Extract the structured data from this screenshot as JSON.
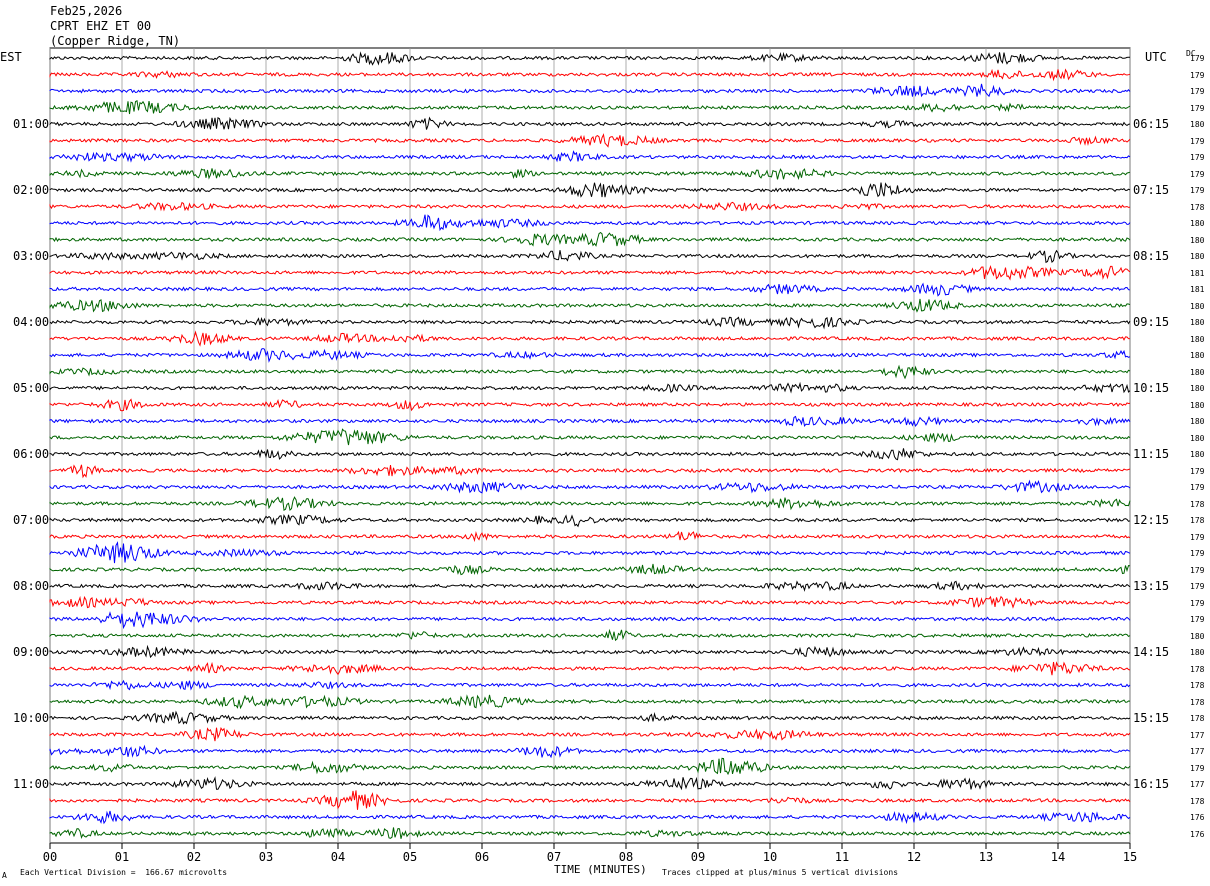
{
  "header": {
    "date": "Feb25,2026",
    "station": "CPRT EHZ ET 00",
    "location": "(Copper Ridge, TN)"
  },
  "left_timezone": "EST",
  "right_timezone": "UTC",
  "dc_label": "DC",
  "footer": {
    "scale": "Each Vertical Division =  166.67 microvolts",
    "xaxis_title": "TIME (MINUTES)",
    "clip_note": "Traces clipped at plus/minus 5 vertical divisions",
    "corner_mark": "A"
  },
  "chart_data": {
    "type": "line",
    "description_kind": "helicorder",
    "x_range": [
      0,
      15
    ],
    "x_ticks": [
      "00",
      "01",
      "02",
      "03",
      "04",
      "05",
      "06",
      "07",
      "08",
      "09",
      "10",
      "11",
      "12",
      "13",
      "14",
      "15"
    ],
    "grid": "vertical lines at each minute",
    "trace_colors": [
      "#000000",
      "#ff0000",
      "#0000ff",
      "#006400"
    ],
    "est_hour_labels": [
      "01:00",
      "02:00",
      "03:00",
      "04:00",
      "05:00",
      "06:00",
      "07:00",
      "08:00",
      "09:00",
      "10:00",
      "11:00"
    ],
    "utc_hour_labels": [
      "06:15",
      "07:15",
      "08:15",
      "09:15",
      "10:15",
      "11:15",
      "12:15",
      "13:15",
      "14:15",
      "15:15",
      "16:15"
    ],
    "dc_offsets": [
      179,
      179,
      179,
      179,
      180,
      179,
      179,
      179,
      179,
      178,
      180,
      180,
      180,
      181,
      181,
      180,
      180,
      180,
      180,
      180,
      180,
      180,
      180,
      180,
      180,
      179,
      179,
      178,
      178,
      179,
      179,
      179,
      179,
      179,
      179,
      180,
      180,
      178,
      178,
      178,
      178,
      177,
      177,
      179,
      177,
      178,
      176,
      176
    ]
  }
}
